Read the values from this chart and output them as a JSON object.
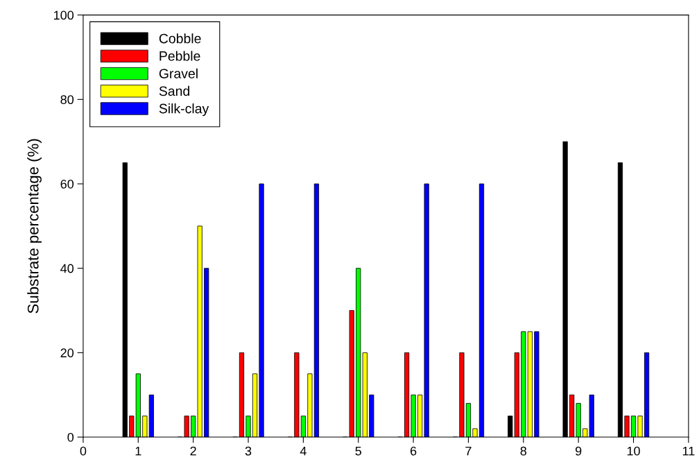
{
  "chart_data": {
    "type": "bar",
    "ylabel": "Substrate percentage (%)",
    "x": [
      1,
      2,
      3,
      4,
      5,
      6,
      7,
      8,
      9,
      10
    ],
    "series": [
      {
        "name": "Cobble",
        "color": "#000000",
        "values": [
          65,
          0,
          0,
          0,
          0,
          0,
          0,
          5,
          70,
          65
        ]
      },
      {
        "name": "Pebble",
        "color": "#ff0000",
        "values": [
          5,
          5,
          20,
          20,
          30,
          20,
          20,
          20,
          10,
          5
        ]
      },
      {
        "name": "Gravel",
        "color": "#00ff00",
        "values": [
          15,
          5,
          5,
          5,
          40,
          10,
          8,
          25,
          8,
          5
        ]
      },
      {
        "name": "Sand",
        "color": "#ffff00",
        "values": [
          5,
          50,
          15,
          15,
          20,
          10,
          2,
          25,
          2,
          5
        ]
      },
      {
        "name": "Silk-clay",
        "color": "#0000ff",
        "values": [
          10,
          40,
          60,
          60,
          10,
          60,
          60,
          25,
          10,
          20
        ]
      }
    ],
    "xlim": [
      0,
      11
    ],
    "xticks": [
      0,
      1,
      2,
      3,
      4,
      5,
      6,
      7,
      8,
      9,
      10,
      11
    ],
    "ylim": [
      0,
      100
    ],
    "yticks": [
      0,
      20,
      40,
      60,
      80,
      100
    ],
    "grid": false,
    "legend": "top left"
  }
}
